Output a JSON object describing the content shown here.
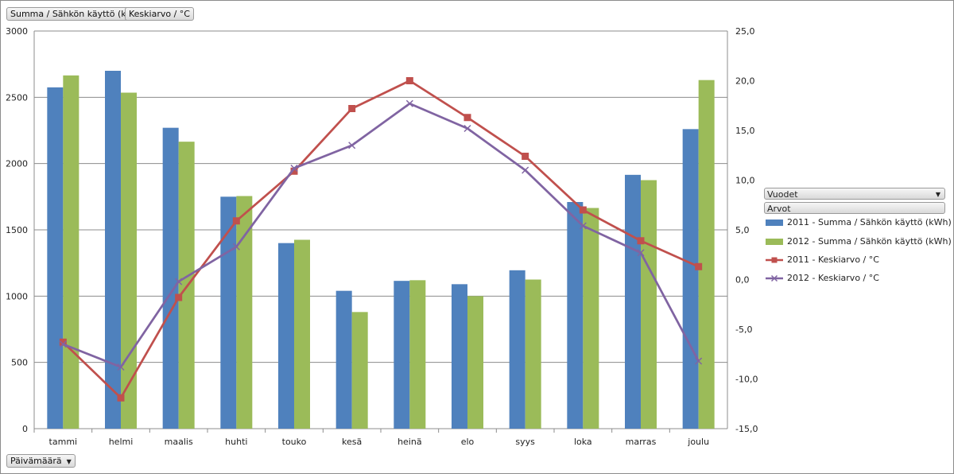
{
  "header": {
    "field_1": "Summa  / Sähkön käyttö (kWh)",
    "field_2": "Keskiarvo  / °C"
  },
  "footer": {
    "date_field": "Päivämäärä"
  },
  "legend": {
    "years_label": "Vuodet",
    "values_label": "Arvot",
    "items": [
      "2011 - Summa  / Sähkön käyttö (kWh)",
      "2012 - Summa  / Sähkön käyttö (kWh)",
      "2011 - Keskiarvo  / °C",
      "2012 - Keskiarvo  / °C"
    ]
  },
  "colors": {
    "bar_2011": "#4f81bd",
    "bar_2012": "#9bbb59",
    "line_2011": "#c0504d",
    "line_2012": "#8064a2"
  },
  "chart_data": {
    "type": "bar",
    "categories": [
      "tammi",
      "helmi",
      "maalis",
      "huhti",
      "touko",
      "kesä",
      "heinä",
      "elo",
      "syys",
      "loka",
      "marras",
      "joulu"
    ],
    "series": [
      {
        "name": "2011 - Summa  / Sähkön käyttö (kWh)",
        "type": "bar",
        "axis": "left",
        "values": [
          2575,
          2700,
          2270,
          1750,
          1400,
          1040,
          1115,
          1090,
          1195,
          1710,
          1915,
          2260
        ]
      },
      {
        "name": "2012 - Summa  / Sähkön käyttö (kWh)",
        "type": "bar",
        "axis": "left",
        "values": [
          2665,
          2535,
          2165,
          1755,
          1425,
          880,
          1120,
          1000,
          1125,
          1665,
          1875,
          2630
        ]
      },
      {
        "name": "2011 - Keskiarvo  / °C",
        "type": "line",
        "axis": "right",
        "marker": "square",
        "values": [
          -6.3,
          -11.9,
          -1.8,
          5.9,
          10.9,
          17.2,
          20.0,
          16.3,
          12.4,
          7.0,
          3.9,
          1.3
        ]
      },
      {
        "name": "2012 - Keskiarvo  / °C",
        "type": "line",
        "axis": "right",
        "marker": "x",
        "values": [
          -6.5,
          -8.8,
          -0.2,
          3.3,
          11.2,
          13.5,
          17.7,
          15.2,
          11.0,
          5.4,
          2.7,
          -8.2
        ]
      }
    ],
    "y_left": {
      "min": 0,
      "max": 3000,
      "ticks": [
        "0",
        "500",
        "1000",
        "1500",
        "2000",
        "2500",
        "3000"
      ]
    },
    "y_right": {
      "min": -15,
      "max": 25,
      "ticks": [
        "-15,0",
        "-10,0",
        "-5,0",
        "0,0",
        "5,0",
        "10,0",
        "15,0",
        "20,0",
        "25,0"
      ]
    },
    "grid": true,
    "legend_position": "right"
  }
}
